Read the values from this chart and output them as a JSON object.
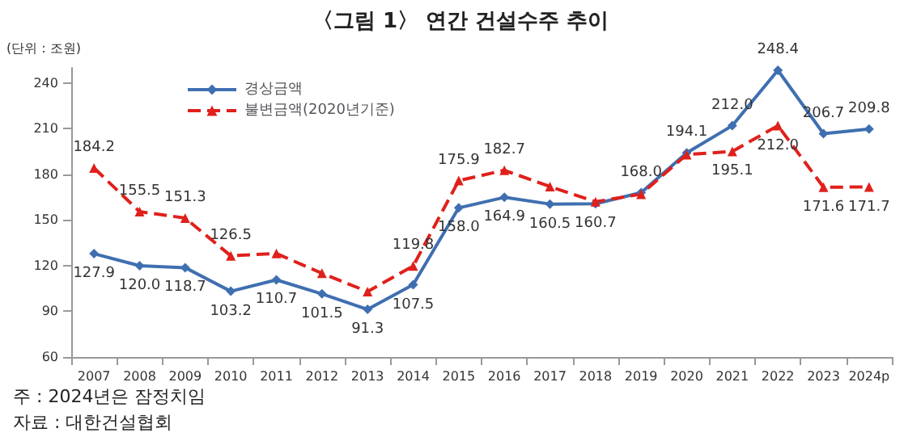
{
  "chart_data": {
    "type": "line",
    "title": "〈그림 1〉 연간 건설수주 추이",
    "ylabel": "(단위 : 조원)",
    "categories": [
      "2007",
      "2008",
      "2009",
      "2010",
      "2011",
      "2012",
      "2013",
      "2014",
      "2015",
      "2016",
      "2017",
      "2018",
      "2019",
      "2020",
      "2021",
      "2022",
      "2023",
      "2024p"
    ],
    "series": [
      {
        "name": "경상금액",
        "color": "#3f6fb0",
        "marker": "diamond",
        "line_style": "solid",
        "values": [
          127.9,
          120.0,
          118.7,
          103.2,
          110.7,
          101.5,
          91.3,
          107.5,
          158.0,
          164.9,
          160.5,
          160.7,
          168.0,
          194.1,
          212.0,
          248.4,
          206.7,
          209.8
        ],
        "value_labels": [
          "127.9",
          "120.0",
          "118.7",
          "103.2",
          "110.7",
          "101.5",
          "91.3",
          "107.5",
          "158.0",
          "164.9",
          "160.5",
          "160.7",
          "168.0",
          "194.1",
          "212.0",
          "248.4",
          "206.7",
          "209.8"
        ]
      },
      {
        "name": "불변금액(2020년기준)",
        "color": "#e0201b",
        "marker": "triangle",
        "line_style": "dashed",
        "values": [
          184.2,
          155.5,
          151.3,
          126.5,
          128,
          115,
          103,
          119.8,
          175.9,
          182.7,
          172,
          162,
          167,
          193,
          195.1,
          212.0,
          171.6,
          171.7
        ],
        "value_labels": [
          "184.2",
          "155.5",
          "151.3",
          "126.5",
          null,
          null,
          null,
          "119.8",
          "175.9",
          "182.7",
          null,
          null,
          null,
          null,
          "195.1",
          "212.0",
          "171.6",
          "171.7"
        ]
      }
    ],
    "ylim": [
      60,
      250
    ],
    "yticks": [
      60,
      90,
      120,
      150,
      180,
      210,
      240
    ],
    "grid": false,
    "legend": "top left",
    "annotations": [
      "주 : 2024년은 잠정치임",
      "자료 : 대한건설협회"
    ]
  }
}
